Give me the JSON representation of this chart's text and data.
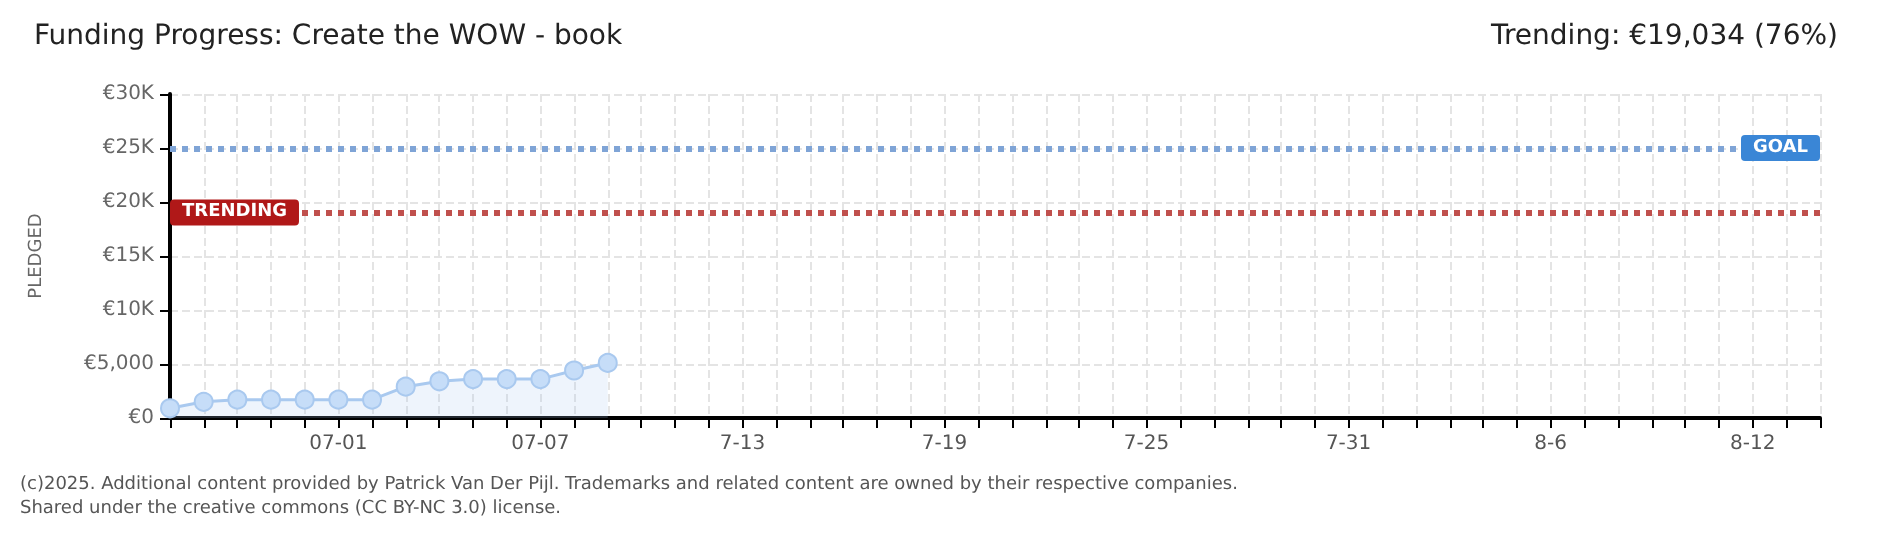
{
  "chart_data": {
    "type": "area",
    "title": "Funding Progress: Create the WOW - book",
    "subtitle": "Trending: €19,034 (76%)",
    "ylabel": "PLEDGED",
    "x": [
      "--06-26",
      "--06-27",
      "--06-28",
      "--06-29",
      "--06-30",
      "--07-01",
      "--07-02",
      "--07-03",
      "--07-04",
      "--07-05",
      "--07-06",
      "--07-07",
      "--07-08",
      "--07-09"
    ],
    "series": [
      {
        "color": "#a9c9ef",
        "values": [
          900,
          1500,
          1700,
          1700,
          1700,
          1700,
          1700,
          2900,
          3400,
          3600,
          3600,
          3600,
          4400,
          5100
        ]
      }
    ],
    "xlim": [
      "--06-26",
      "--08-14"
    ],
    "xticks": [
      {
        "value": "--06-26",
        "label": null
      },
      {
        "value": "--06-27",
        "label": null
      },
      {
        "value": "--06-28",
        "label": null
      },
      {
        "value": "--06-29",
        "label": null
      },
      {
        "value": "--06-30",
        "label": null
      },
      {
        "value": "--07-01",
        "label": "07-01"
      },
      {
        "value": "--07-02",
        "label": null
      },
      {
        "value": "--07-03",
        "label": null
      },
      {
        "value": "--07-04",
        "label": null
      },
      {
        "value": "--07-05",
        "label": null
      },
      {
        "value": "--07-06",
        "label": null
      },
      {
        "value": "--07-07",
        "label": "07-07"
      },
      {
        "value": "--07-08",
        "label": null
      },
      {
        "value": "--07-09",
        "label": null
      },
      {
        "value": "--07-10",
        "label": null
      },
      {
        "value": "--07-11",
        "label": null
      },
      {
        "value": "--07-12",
        "label": null
      },
      {
        "value": "--07-13",
        "label": "7-13"
      },
      {
        "value": "--07-14",
        "label": null
      },
      {
        "value": "--07-15",
        "label": null
      },
      {
        "value": "--07-16",
        "label": null
      },
      {
        "value": "--07-17",
        "label": null
      },
      {
        "value": "--07-18",
        "label": null
      },
      {
        "value": "--07-19",
        "label": "7-19"
      },
      {
        "value": "--07-20",
        "label": null
      },
      {
        "value": "--07-21",
        "label": null
      },
      {
        "value": "--07-22",
        "label": null
      },
      {
        "value": "--07-23",
        "label": null
      },
      {
        "value": "--07-24",
        "label": null
      },
      {
        "value": "--07-25",
        "label": "7-25"
      },
      {
        "value": "--07-26",
        "label": null
      },
      {
        "value": "--07-27",
        "label": null
      },
      {
        "value": "--07-28",
        "label": null
      },
      {
        "value": "--07-29",
        "label": null
      },
      {
        "value": "--07-30",
        "label": null
      },
      {
        "value": "--07-31",
        "label": "7-31"
      },
      {
        "value": "--08-01",
        "label": null
      },
      {
        "value": "--08-02",
        "label": null
      },
      {
        "value": "--08-03",
        "label": null
      },
      {
        "value": "--08-04",
        "label": null
      },
      {
        "value": "--08-05",
        "label": null
      },
      {
        "value": "--08-06",
        "label": "8-6"
      },
      {
        "value": "--08-07",
        "label": null
      },
      {
        "value": "--08-08",
        "label": null
      },
      {
        "value": "--08-09",
        "label": null
      },
      {
        "value": "--08-10",
        "label": null
      },
      {
        "value": "--08-11",
        "label": null
      },
      {
        "value": "--08-12",
        "label": "8-12"
      },
      {
        "value": "--08-13",
        "label": null
      },
      {
        "value": "--08-14",
        "label": null
      }
    ],
    "ylim": [
      0,
      30000
    ],
    "yticks": [
      {
        "value": 0,
        "label": "€0"
      },
      {
        "value": 5000,
        "label": "€5,000"
      },
      {
        "value": 10000,
        "label": "€10K"
      },
      {
        "value": 15000,
        "label": "€15K"
      },
      {
        "value": 20000,
        "label": "€20K"
      },
      {
        "value": 25000,
        "label": "€25K"
      },
      {
        "value": 30000,
        "label": "€30K"
      }
    ],
    "ref_lines": [
      {
        "axis": "y",
        "value": 25000,
        "label": "GOAL",
        "color": "#7fa4d6",
        "line_style": "dotted"
      },
      {
        "axis": "y",
        "value": 19034,
        "label": "TRENDING",
        "color": "#c0504d",
        "line_style": "dotted"
      }
    ],
    "grid": true,
    "marker": "circle",
    "line_style": "solid",
    "annotations": [
      "(c)2025. Additional content provided by Patrick Van Der Pijl. Trademarks and related content are owned by their respective companies.",
      "Shared under the creative commons (CC BY-NC 3.0) license."
    ]
  }
}
